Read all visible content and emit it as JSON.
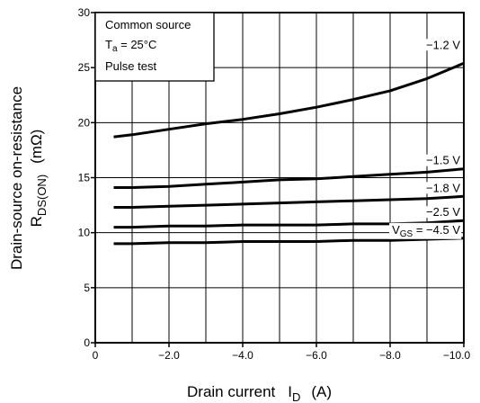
{
  "chart_data": {
    "type": "line",
    "xlabel_main": "Drain current",
    "xlabel_symbol": "I",
    "xlabel_symbol_sub": "D",
    "xlabel_unit": "(A)",
    "ylabel_line1": "Drain-source on-resistance",
    "ylabel_symbol": "R",
    "ylabel_symbol_sub": "DS(ON)",
    "ylabel_unit": "(mΩ)",
    "xlim": [
      0,
      -10.0
    ],
    "ylim": [
      0,
      30
    ],
    "x_ticks": [
      {
        "value": 0,
        "label": "0"
      },
      {
        "value": -2.0,
        "label": "−2.0"
      },
      {
        "value": -4.0,
        "label": "−4.0"
      },
      {
        "value": -6.0,
        "label": "−6.0"
      },
      {
        "value": -8.0,
        "label": "−8.0"
      },
      {
        "value": -10.0,
        "label": "−10.0"
      }
    ],
    "y_ticks": [
      {
        "value": 0,
        "label": "0"
      },
      {
        "value": 5,
        "label": "5"
      },
      {
        "value": 10,
        "label": "10"
      },
      {
        "value": 15,
        "label": "15"
      },
      {
        "value": 20,
        "label": "20"
      },
      {
        "value": 25,
        "label": "25"
      },
      {
        "value": 30,
        "label": "30"
      }
    ],
    "grid": true,
    "conditions": {
      "line1": "Common source",
      "line2_prefix": "T",
      "line2_sub": "a",
      "line2_suffix": " = 25°C",
      "line3": "Pulse test"
    },
    "series": [
      {
        "name": "−1.2 V",
        "x": [
          -0.5,
          -1,
          -2,
          -3,
          -4,
          -5,
          -6,
          -7,
          -8,
          -9,
          -10
        ],
        "y": [
          18.7,
          18.9,
          19.4,
          19.9,
          20.3,
          20.8,
          21.4,
          22.1,
          22.9,
          24.0,
          25.4
        ]
      },
      {
        "name": "−1.5 V",
        "x": [
          -0.5,
          -1,
          -2,
          -3,
          -4,
          -5,
          -6,
          -7,
          -8,
          -9,
          -10
        ],
        "y": [
          14.1,
          14.1,
          14.2,
          14.4,
          14.6,
          14.8,
          14.9,
          15.1,
          15.3,
          15.5,
          15.8
        ]
      },
      {
        "name": "−1.8 V",
        "x": [
          -0.5,
          -1,
          -2,
          -3,
          -4,
          -5,
          -6,
          -7,
          -8,
          -9,
          -10
        ],
        "y": [
          12.3,
          12.3,
          12.4,
          12.5,
          12.6,
          12.7,
          12.8,
          12.9,
          13.0,
          13.1,
          13.3
        ]
      },
      {
        "name": "−2.5 V",
        "x": [
          -0.5,
          -1,
          -2,
          -3,
          -4,
          -5,
          -6,
          -7,
          -8,
          -9,
          -10
        ],
        "y": [
          10.5,
          10.5,
          10.6,
          10.6,
          10.7,
          10.7,
          10.7,
          10.8,
          10.8,
          10.9,
          11.1
        ]
      },
      {
        "name": "−4.5 V",
        "x": [
          -0.5,
          -1,
          -2,
          -3,
          -4,
          -5,
          -6,
          -7,
          -8,
          -9,
          -10
        ],
        "y": [
          9.0,
          9.0,
          9.1,
          9.1,
          9.2,
          9.2,
          9.2,
          9.3,
          9.3,
          9.4,
          9.5
        ]
      }
    ],
    "series_label_prefix": {
      "symbol": "V",
      "sub": "GS",
      "text": " = "
    }
  }
}
